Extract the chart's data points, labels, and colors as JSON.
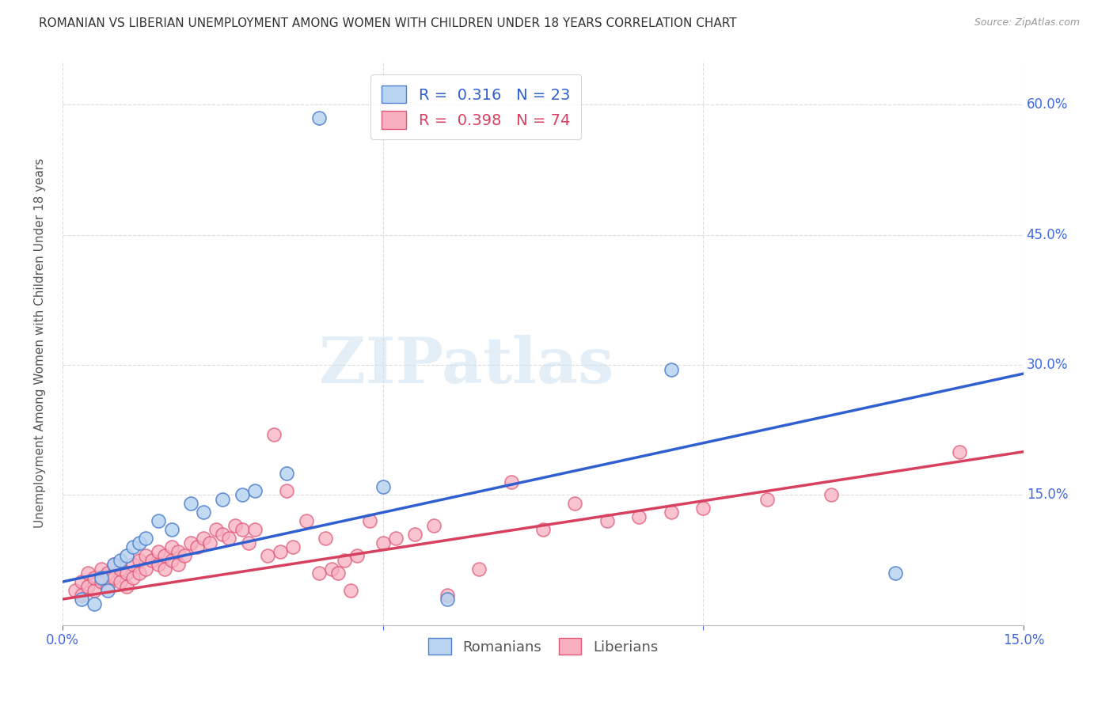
{
  "title": "ROMANIAN VS LIBERIAN UNEMPLOYMENT AMONG WOMEN WITH CHILDREN UNDER 18 YEARS CORRELATION CHART",
  "source": "Source: ZipAtlas.com",
  "ylabel": "Unemployment Among Women with Children Under 18 years",
  "xlim": [
    0.0,
    0.15
  ],
  "ylim": [
    0.0,
    0.65
  ],
  "yticks": [
    0.0,
    0.15,
    0.3,
    0.45,
    0.6
  ],
  "ytick_labels": [
    "",
    "15.0%",
    "30.0%",
    "45.0%",
    "60.0%"
  ],
  "xticks": [
    0.0,
    0.05,
    0.1,
    0.15
  ],
  "xtick_labels": [
    "0.0%",
    "",
    "",
    "15.0%"
  ],
  "r_romanian": 0.316,
  "n_romanian": 23,
  "r_liberian": 0.398,
  "n_liberian": 74,
  "color_romanian_face": "#b8d4f0",
  "color_romanian_edge": "#5080d0",
  "color_liberian_face": "#f8b0c0",
  "color_liberian_edge": "#e05878",
  "color_line_romanian": "#3060d0",
  "color_line_liberian": "#d84060",
  "watermark_text": "ZIPatlas",
  "background_color": "#ffffff",
  "grid_color": "#dddddd",
  "title_color": "#333333",
  "axis_label_color": "#4169e1",
  "romanians_x": [
    0.003,
    0.005,
    0.006,
    0.007,
    0.008,
    0.009,
    0.01,
    0.011,
    0.012,
    0.013,
    0.015,
    0.017,
    0.02,
    0.022,
    0.025,
    0.028,
    0.03,
    0.035,
    0.04,
    0.05,
    0.06,
    0.095,
    0.13
  ],
  "romanians_y": [
    0.03,
    0.025,
    0.055,
    0.04,
    0.07,
    0.075,
    0.08,
    0.09,
    0.095,
    0.1,
    0.12,
    0.11,
    0.14,
    0.13,
    0.145,
    0.15,
    0.155,
    0.175,
    0.585,
    0.16,
    0.03,
    0.295,
    0.06
  ],
  "liberians_x": [
    0.002,
    0.003,
    0.003,
    0.004,
    0.004,
    0.005,
    0.005,
    0.006,
    0.006,
    0.007,
    0.007,
    0.008,
    0.008,
    0.009,
    0.009,
    0.01,
    0.01,
    0.011,
    0.011,
    0.012,
    0.012,
    0.013,
    0.013,
    0.014,
    0.015,
    0.015,
    0.016,
    0.016,
    0.017,
    0.017,
    0.018,
    0.018,
    0.019,
    0.02,
    0.021,
    0.022,
    0.023,
    0.024,
    0.025,
    0.026,
    0.027,
    0.028,
    0.029,
    0.03,
    0.032,
    0.033,
    0.034,
    0.035,
    0.036,
    0.038,
    0.04,
    0.041,
    0.042,
    0.043,
    0.044,
    0.045,
    0.046,
    0.048,
    0.05,
    0.052,
    0.055,
    0.058,
    0.06,
    0.065,
    0.07,
    0.075,
    0.08,
    0.085,
    0.09,
    0.095,
    0.1,
    0.11,
    0.12,
    0.14
  ],
  "liberians_y": [
    0.04,
    0.035,
    0.05,
    0.045,
    0.06,
    0.04,
    0.055,
    0.05,
    0.065,
    0.045,
    0.06,
    0.055,
    0.07,
    0.05,
    0.065,
    0.045,
    0.06,
    0.055,
    0.07,
    0.06,
    0.075,
    0.065,
    0.08,
    0.075,
    0.07,
    0.085,
    0.065,
    0.08,
    0.075,
    0.09,
    0.07,
    0.085,
    0.08,
    0.095,
    0.09,
    0.1,
    0.095,
    0.11,
    0.105,
    0.1,
    0.115,
    0.11,
    0.095,
    0.11,
    0.08,
    0.22,
    0.085,
    0.155,
    0.09,
    0.12,
    0.06,
    0.1,
    0.065,
    0.06,
    0.075,
    0.04,
    0.08,
    0.12,
    0.095,
    0.1,
    0.105,
    0.115,
    0.035,
    0.065,
    0.165,
    0.11,
    0.14,
    0.12,
    0.125,
    0.13,
    0.135,
    0.145,
    0.15,
    0.2
  ],
  "trend_romanian_y0": 0.05,
  "trend_romanian_y1": 0.29,
  "trend_liberian_y0": 0.03,
  "trend_liberian_y1": 0.2
}
